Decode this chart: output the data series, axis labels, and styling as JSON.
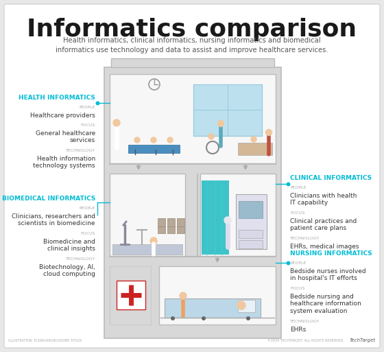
{
  "title": "Informatics comparison",
  "subtitle": "Health informatics, clinical informatics, nursing informatics and biomedical\ninformatics use technology and data to assist and improve healthcare services.",
  "bg_color": "#e8e8e8",
  "panel_color": "#ffffff",
  "building_fill": "#d4d4d4",
  "room_fill": "#f0f0f0",
  "room_stroke": "#bbbbbb",
  "accent": "#00bcd4",
  "label_color": "#aaaaaa",
  "text_color": "#333333",
  "title_color": "#1a1a1a",
  "teal_curtain": "#2bbec4",
  "chair_blue": "#3d8fbf",
  "footer_left": "ILLUSTRATION: ELENA/IIRORI/ADOBE STOCK",
  "footer_right": "©2024 TECHTARGET. ALL RIGHTS RESERVED.",
  "sections": {
    "health": {
      "heading": "HEALTH INFORMATICS",
      "p_lbl": "PEOPLE",
      "people": "Healthcare providers",
      "f_lbl": "FOCUS",
      "focus": "General healthcare\nservices",
      "t_lbl": "TECHNOLOGY",
      "tech": "Health information\ntechnology systems"
    },
    "biomedical": {
      "heading": "BIOMEDICAL INFORMATICS",
      "p_lbl": "PEOPLE",
      "people": "Clinicians, researchers and\nscientists in biomedicine",
      "f_lbl": "FOCUS",
      "focus": "Biomedicine and\nclinical insights",
      "t_lbl": "TECHNOLOGY",
      "tech": "Biotechnology, AI,\ncloud computing"
    },
    "clinical": {
      "heading": "CLINICAL INFORMATICS",
      "p_lbl": "PEOPLE",
      "people": "Clinicians with health\nIT capability",
      "f_lbl": "FOCUS",
      "focus": "Clinical practices and\npatient care plans",
      "t_lbl": "TECHNOLOGY",
      "tech": "EHRs, medical images"
    },
    "nursing": {
      "heading": "NURSING INFORMATICS",
      "p_lbl": "PEOPLE",
      "people": "Bedside nurses involved\nin hospital's IT efforts",
      "f_lbl": "FOCUS",
      "focus": "Bedside nursing and\nhealthcare information\nsystem evaluation",
      "t_lbl": "TECHNOLOGY",
      "tech": "EHRs"
    }
  }
}
